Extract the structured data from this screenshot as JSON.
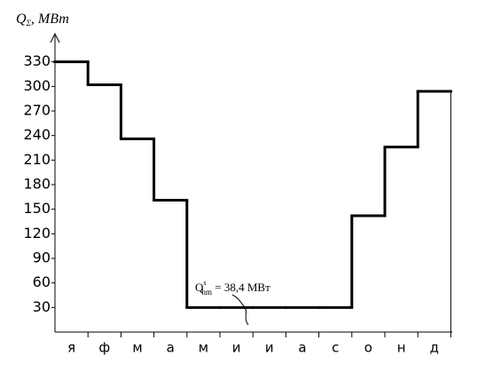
{
  "chart_data": {
    "type": "step",
    "y_label": {
      "main": "Q",
      "sub": "Σ",
      "rest": ",  МВт"
    },
    "annotation": {
      "main": "Q",
      "sup": "s",
      "sub": "hm",
      "rest": " = 38,4 МВт"
    },
    "categories": [
      "я",
      "ф",
      "м",
      "а",
      "м",
      "и",
      "и",
      "а",
      "с",
      "о",
      "н",
      "д"
    ],
    "values": [
      330,
      302,
      236,
      161,
      30,
      30,
      30,
      30,
      30,
      142,
      226,
      294
    ],
    "color": "#000000",
    "ylim": [
      0,
      360
    ],
    "yticks": [
      30,
      60,
      90,
      120,
      150,
      180,
      210,
      240,
      270,
      300,
      330
    ],
    "grid": false
  }
}
